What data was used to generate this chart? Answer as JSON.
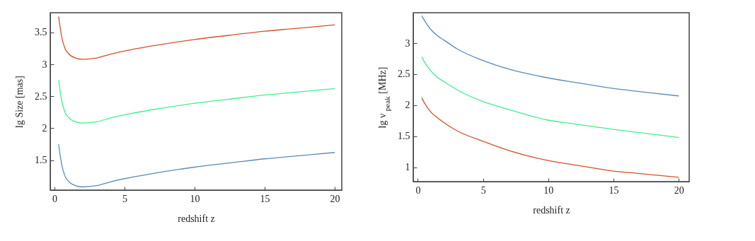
{
  "chart_data": [
    {
      "type": "line",
      "xlabel": "redshift  z",
      "ylabel": "lg Size [mas]",
      "x": [
        0.3,
        0.5,
        0.75,
        1,
        1.5,
        2,
        3,
        4,
        5,
        7,
        10,
        13,
        15,
        17,
        20
      ],
      "series": [
        {
          "color": "#d4502c",
          "values": [
            3.75,
            3.45,
            3.25,
            3.17,
            3.1,
            3.08,
            3.1,
            3.16,
            3.21,
            3.29,
            3.39,
            3.47,
            3.52,
            3.56,
            3.62
          ]
        },
        {
          "color": "#3ff08c",
          "values": [
            2.75,
            2.45,
            2.25,
            2.17,
            2.1,
            2.08,
            2.1,
            2.16,
            2.21,
            2.29,
            2.39,
            2.47,
            2.52,
            2.56,
            2.62
          ]
        },
        {
          "color": "#5b8abb",
          "values": [
            1.75,
            1.45,
            1.25,
            1.17,
            1.1,
            1.08,
            1.1,
            1.16,
            1.21,
            1.29,
            1.39,
            1.47,
            1.52,
            1.56,
            1.62
          ]
        }
      ],
      "xlim": [
        -0.3,
        20.5
      ],
      "xticks": [
        0,
        5,
        10,
        15,
        20
      ],
      "ylim": [
        1.03,
        3.81
      ],
      "yticks": [
        1.5,
        2,
        2.5,
        3,
        3.5
      ],
      "grid": false,
      "legend": false
    },
    {
      "type": "line",
      "xlabel": "redshift  z",
      "ylabel": "lg ν$_{peak}$ [MHz]",
      "x": [
        0.3,
        0.5,
        1,
        1.5,
        2,
        3,
        5,
        7,
        10,
        12,
        15,
        17,
        20
      ],
      "series": [
        {
          "color": "#5b8abb",
          "values": [
            3.44,
            3.37,
            3.22,
            3.12,
            3.05,
            2.91,
            2.72,
            2.58,
            2.44,
            2.37,
            2.27,
            2.22,
            2.15
          ]
        },
        {
          "color": "#3ff08c",
          "values": [
            2.78,
            2.7,
            2.55,
            2.45,
            2.38,
            2.25,
            2.06,
            1.93,
            1.76,
            1.7,
            1.61,
            1.56,
            1.48
          ]
        },
        {
          "color": "#d4502c",
          "values": [
            2.12,
            2.04,
            1.89,
            1.8,
            1.72,
            1.59,
            1.42,
            1.27,
            1.11,
            1.04,
            0.94,
            0.9,
            0.84
          ]
        }
      ],
      "xlim": [
        -0.35,
        20.8
      ],
      "xticks": [
        0,
        5,
        10,
        15,
        20
      ],
      "ylim": [
        0.77,
        3.49
      ],
      "yticks": [
        1,
        1.5,
        2,
        2.5,
        3
      ],
      "grid": false,
      "legend": false
    }
  ]
}
